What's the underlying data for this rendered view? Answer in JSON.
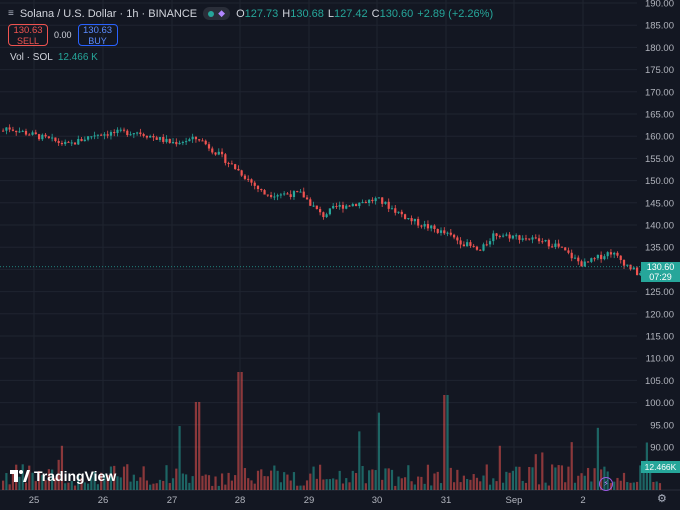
{
  "header": {
    "symbol": "Solana / U.S. Dollar · 1h · BINANCE",
    "ohlc": [
      {
        "label": "O",
        "value": "127.73"
      },
      {
        "label": "H",
        "value": "130.68"
      },
      {
        "label": "L",
        "value": "127.42"
      },
      {
        "label": "C",
        "value": "130.60"
      }
    ],
    "change": "+2.89 (+2.26%)",
    "icons": [
      "collapse-icon",
      "market-status-dot",
      "alert-diamond-icon"
    ]
  },
  "trade": {
    "sell_price": "130.63",
    "sell_label": "SELL",
    "spread": "0.00",
    "buy_price": "130.63",
    "buy_label": "BUY"
  },
  "volume_legend": {
    "label": "Vol · SOL",
    "value": "12.466 K"
  },
  "price_axis_labels": [
    "190.00",
    "185.00",
    "180.00",
    "175.00",
    "170.00",
    "165.00",
    "160.00",
    "155.00",
    "150.00",
    "145.00",
    "140.00",
    "135.00",
    "130.00",
    "125.00",
    "120.00",
    "115.00",
    "110.00",
    "105.00",
    "100.00",
    "95.00",
    "90.00"
  ],
  "last_price": {
    "value": "130.60",
    "countdown": "07:29"
  },
  "volume_tag": "12.466K",
  "time_labels": [
    "25",
    "26",
    "27",
    "28",
    "29",
    "30",
    "31",
    "Sep",
    "2"
  ],
  "brand": "TradingView",
  "colors": {
    "up": "#26a69a",
    "down": "#ef5350",
    "background": "#131722",
    "grid": "#1f2430"
  },
  "chart_data": {
    "type": "candlestick",
    "x_labels": [
      "25",
      "26",
      "27",
      "28",
      "29",
      "30",
      "31",
      "Sep",
      "2"
    ],
    "ylim": [
      87,
      190
    ],
    "grid": true,
    "price_path": [
      {
        "day": "25",
        "approx_close": 161
      },
      {
        "day": "26",
        "approx_close": 160
      },
      {
        "day": "27",
        "approx_close": 159
      },
      {
        "day": "28",
        "approx_close": 147
      },
      {
        "day": "29",
        "approx_close": 144
      },
      {
        "day": "30",
        "approx_close": 140
      },
      {
        "day": "31",
        "approx_close": 138
      },
      {
        "day": "Sep",
        "approx_close": 134
      },
      {
        "day": "2",
        "approx_close": 130.6
      }
    ]
  }
}
